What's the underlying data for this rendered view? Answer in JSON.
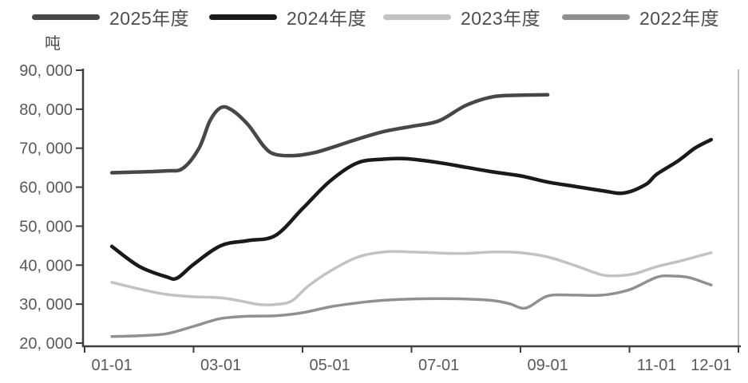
{
  "legend": {
    "items": [
      {
        "label": "2025年度",
        "color": "#45474a"
      },
      {
        "label": "2024年度",
        "color": "#1a1a1a"
      },
      {
        "label": "2023年度",
        "color": "#c2c2c4"
      },
      {
        "label": "2022年度",
        "color": "#8e9092"
      }
    ]
  },
  "chart_data": {
    "type": "line",
    "title": "",
    "ylabel": "吨",
    "xlabel": "",
    "grid": "off",
    "legend_position": "top",
    "x_axis": {
      "tick_labels": [
        "01-01",
        "03-01",
        "05-01",
        "07-01",
        "09-01",
        "11-01",
        "12-01"
      ],
      "label_months": [
        1,
        3,
        5,
        7,
        9,
        11,
        12
      ],
      "boundary_months": [
        1,
        3,
        5,
        7,
        9,
        11,
        13
      ]
    },
    "y_axis": {
      "tick_labels": [
        "90, 000",
        "80, 000",
        "70, 000",
        "60, 000",
        "50, 000",
        "40, 000",
        "30, 000",
        "20, 000"
      ],
      "tick_values": [
        90000,
        80000,
        70000,
        60000,
        50000,
        40000,
        30000,
        20000
      ],
      "min": 20000,
      "max": 90000
    },
    "series": [
      {
        "name": "2025年度",
        "color": "#45474a",
        "stroke_width": 4.5,
        "points": [
          [
            1,
            63700
          ],
          [
            1.5,
            63900
          ],
          [
            2,
            64200
          ],
          [
            2.3,
            64800
          ],
          [
            2.6,
            70000
          ],
          [
            2.8,
            77000
          ],
          [
            3,
            80400
          ],
          [
            3.2,
            79800
          ],
          [
            3.5,
            76000
          ],
          [
            3.8,
            70300
          ],
          [
            4,
            68400
          ],
          [
            4.35,
            68100
          ],
          [
            4.7,
            68800
          ],
          [
            5,
            70000
          ],
          [
            5.5,
            72300
          ],
          [
            6,
            74300
          ],
          [
            6.5,
            75600
          ],
          [
            7,
            77000
          ],
          [
            7.5,
            81000
          ],
          [
            8,
            83200
          ],
          [
            8.5,
            83600
          ],
          [
            9,
            83700
          ]
        ]
      },
      {
        "name": "2024年度",
        "color": "#1a1a1a",
        "stroke_width": 4.5,
        "points": [
          [
            1,
            44800
          ],
          [
            1.5,
            39700
          ],
          [
            2,
            37000
          ],
          [
            2.2,
            36700
          ],
          [
            2.5,
            40200
          ],
          [
            3,
            45000
          ],
          [
            3.5,
            46300
          ],
          [
            4,
            47600
          ],
          [
            4.5,
            54500
          ],
          [
            5,
            61500
          ],
          [
            5.5,
            66200
          ],
          [
            6,
            67200
          ],
          [
            6.4,
            67300
          ],
          [
            7,
            66300
          ],
          [
            7.5,
            65100
          ],
          [
            8,
            63900
          ],
          [
            8.5,
            62900
          ],
          [
            9,
            61300
          ],
          [
            9.5,
            60200
          ],
          [
            10,
            59100
          ],
          [
            10.4,
            58500
          ],
          [
            10.8,
            60700
          ],
          [
            11,
            63300
          ],
          [
            11.4,
            66800
          ],
          [
            11.7,
            70000
          ],
          [
            12,
            72200
          ]
        ]
      },
      {
        "name": "2023年度",
        "color": "#c2c2c4",
        "stroke_width": 3.5,
        "points": [
          [
            1,
            35600
          ],
          [
            1.5,
            33900
          ],
          [
            2,
            32500
          ],
          [
            2.5,
            31900
          ],
          [
            3,
            31600
          ],
          [
            3.4,
            30700
          ],
          [
            3.7,
            29900
          ],
          [
            4,
            29900
          ],
          [
            4.3,
            30800
          ],
          [
            4.6,
            34600
          ],
          [
            5,
            38400
          ],
          [
            5.5,
            42000
          ],
          [
            6,
            43400
          ],
          [
            6.5,
            43400
          ],
          [
            7,
            43100
          ],
          [
            7.5,
            43000
          ],
          [
            8,
            43400
          ],
          [
            8.5,
            43200
          ],
          [
            9,
            42100
          ],
          [
            9.5,
            39900
          ],
          [
            10,
            37500
          ],
          [
            10.3,
            37300
          ],
          [
            10.6,
            37800
          ],
          [
            11,
            39600
          ],
          [
            11.5,
            41300
          ],
          [
            12,
            43200
          ]
        ]
      },
      {
        "name": "2022年度",
        "color": "#8e9092",
        "stroke_width": 3.5,
        "points": [
          [
            1,
            21700
          ],
          [
            1.5,
            21900
          ],
          [
            2,
            22400
          ],
          [
            2.5,
            24300
          ],
          [
            3,
            26300
          ],
          [
            3.5,
            26900
          ],
          [
            4,
            27000
          ],
          [
            4.5,
            27800
          ],
          [
            5,
            29300
          ],
          [
            5.5,
            30300
          ],
          [
            6,
            31000
          ],
          [
            6.5,
            31300
          ],
          [
            7,
            31400
          ],
          [
            7.5,
            31300
          ],
          [
            8,
            30900
          ],
          [
            8.3,
            30100
          ],
          [
            8.6,
            29000
          ],
          [
            9,
            32100
          ],
          [
            9.5,
            32300
          ],
          [
            10,
            32300
          ],
          [
            10.5,
            33700
          ],
          [
            11,
            36900
          ],
          [
            11.3,
            37200
          ],
          [
            11.6,
            36800
          ],
          [
            12,
            34900
          ]
        ]
      }
    ]
  }
}
